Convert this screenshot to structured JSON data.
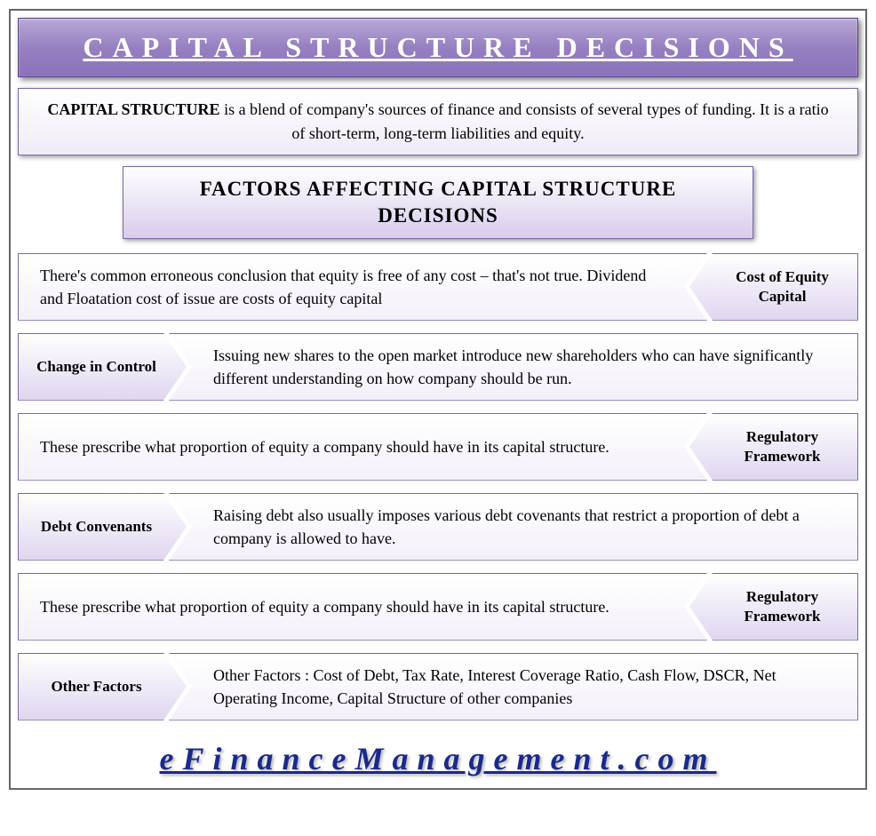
{
  "title": "CAPITAL STRUCTURE DECISIONS",
  "definition_bold": "CAPITAL STRUCTURE",
  "definition_rest": " is a blend of company's sources of finance and consists of several types of funding. It is a ratio of short-term, long-term liabilities and equity.",
  "subtitle": "FACTORS AFFECTING CAPITAL STRUCTURE DECISIONS",
  "factors": [
    {
      "side": "right",
      "label": "Cost of Equity Capital",
      "desc": "There's common erroneous conclusion that equity is free of any cost – that's not true. Dividend and Floatation cost of issue are costs of equity capital"
    },
    {
      "side": "left",
      "label": "Change in Control",
      "desc": "Issuing new shares to the open market introduce new shareholders who can have significantly different understanding on how company should be run."
    },
    {
      "side": "right",
      "label": "Regulatory Framework",
      "desc": "These prescribe what proportion of equity a company should have in its capital structure."
    },
    {
      "side": "left",
      "label": "Debt Convenants",
      "desc": "Raising debt also usually imposes various debt covenants that restrict a proportion of debt a company is allowed to have."
    },
    {
      "side": "right",
      "label": "Regulatory Framework",
      "desc": "These prescribe what proportion of equity a company should have in its capital structure."
    },
    {
      "side": "left",
      "label": "Other Factors",
      "desc": "Other Factors : Cost of Debt, Tax Rate, Interest Coverage Ratio, Cash Flow, DSCR, Net Operating Income, Capital Structure of other companies"
    }
  ],
  "footer_url": "eFinanceManagement.com",
  "colors": {
    "title_bg_start": "#b8a8d8",
    "title_bg_end": "#8c72bc",
    "border": "#7a68a8",
    "link": "#1a2a8a"
  }
}
